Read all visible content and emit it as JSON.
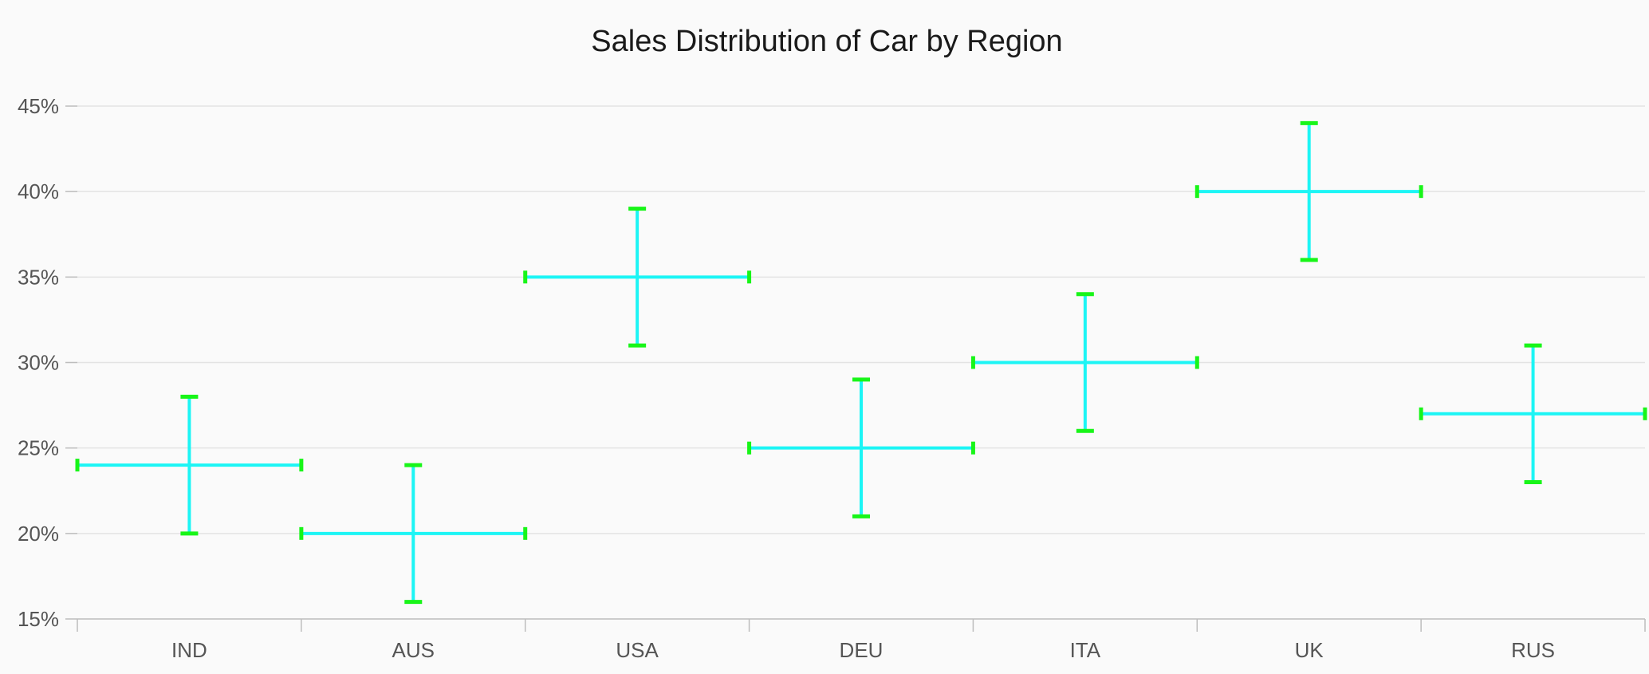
{
  "chart_data": {
    "type": "scatter",
    "subtype": "error-bar",
    "title": "Sales Distribution of Car by Region",
    "xlabel": "",
    "ylabel": "",
    "categories": [
      "IND",
      "AUS",
      "USA",
      "DEU",
      "ITA",
      "UK",
      "RUS"
    ],
    "values": [
      24,
      20,
      35,
      25,
      30,
      40,
      27
    ],
    "y_error": [
      4,
      4,
      4,
      4,
      4,
      4,
      4
    ],
    "x_error_categories": 0.5,
    "ylim": [
      15,
      45
    ],
    "yticks": [
      15,
      20,
      25,
      30,
      35,
      40,
      45
    ],
    "ytick_labels": [
      "15%",
      "20%",
      "25%",
      "30%",
      "35%",
      "40%",
      "45%"
    ],
    "grid": true,
    "legend": "none",
    "colors": {
      "bar": "#1cf5f5",
      "cap": "#18f518",
      "background": "#fafafa"
    }
  }
}
